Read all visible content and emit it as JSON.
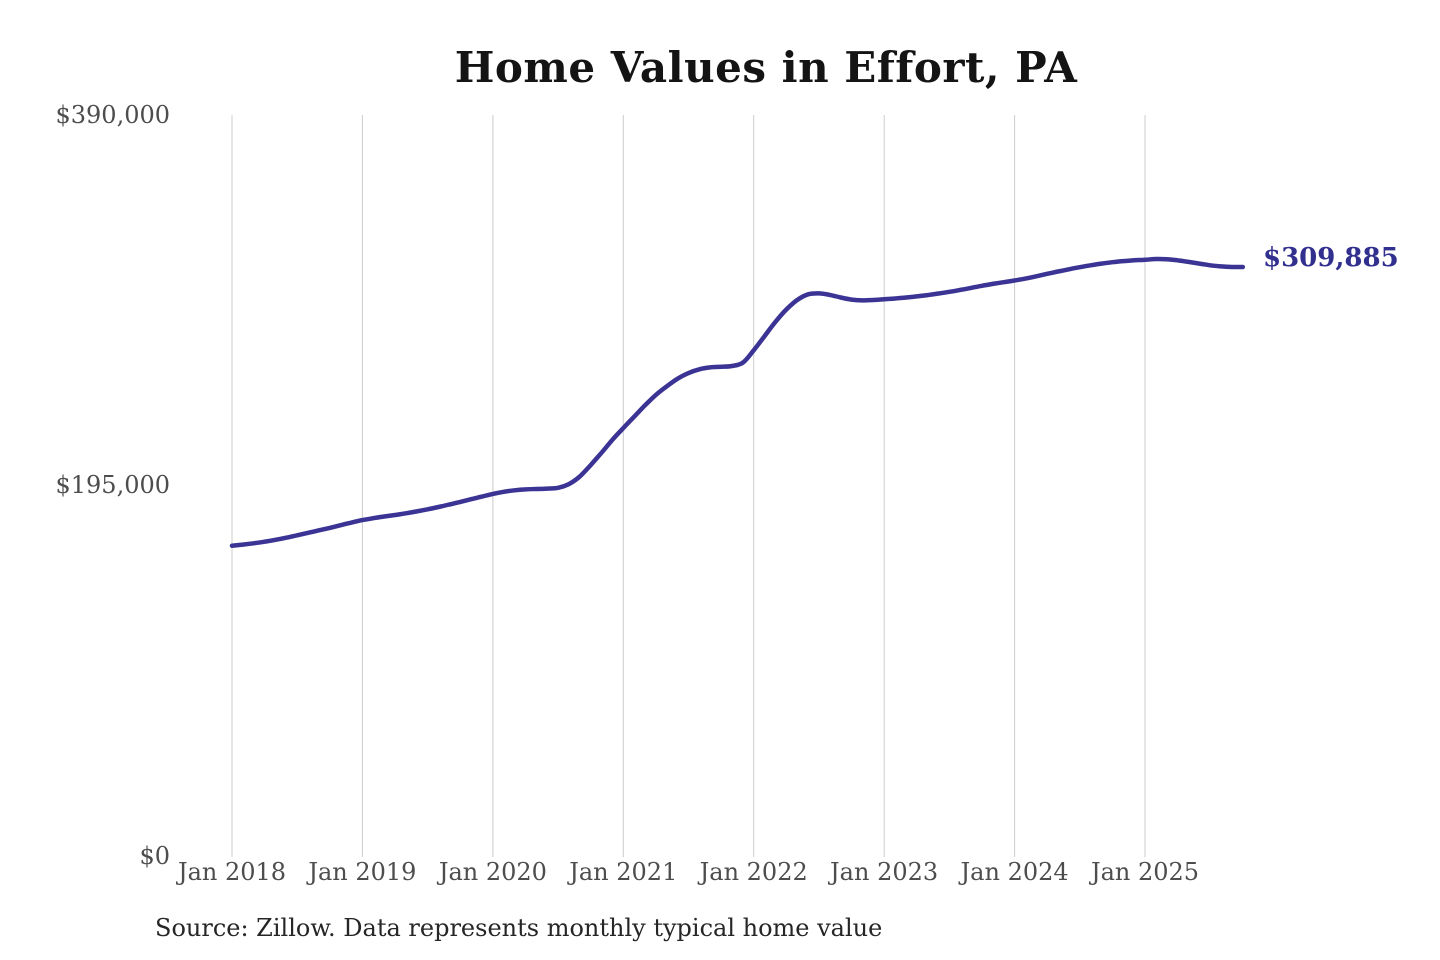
{
  "title": "Home Values in Effort, PA",
  "chart_data": {
    "type": "line",
    "title": "Home Values in Effort, PA",
    "x_unit": "month",
    "x_start": "2018-01",
    "x_end": "2025-10",
    "frequency": "monthly",
    "x_tick_labels": [
      "Jan 2018",
      "Jan 2019",
      "Jan 2020",
      "Jan 2021",
      "Jan 2022",
      "Jan 2023",
      "Jan 2024",
      "Jan 2025"
    ],
    "y_tick_labels": [
      "$0",
      "$195,000",
      "$390,000"
    ],
    "y_tick_values": [
      0,
      195000,
      390000
    ],
    "ylim": [
      0,
      390000
    ],
    "grid": "vertical-only",
    "legend": "none",
    "line_color": "#3b3494",
    "gridline_color": "#cccccc",
    "end_label": {
      "text": "$309,885",
      "value": 309885,
      "color": "#32308f"
    },
    "series": [
      {
        "name": "Typical home value",
        "values": [
          163000,
          163600,
          164300,
          165100,
          166100,
          167200,
          168500,
          169800,
          171100,
          172400,
          173800,
          175200,
          176500,
          177500,
          178400,
          179200,
          180100,
          181100,
          182200,
          183400,
          184700,
          186100,
          187500,
          188900,
          190300,
          191400,
          192200,
          192700,
          192900,
          193100,
          193500,
          195500,
          199500,
          205500,
          212000,
          218800,
          225000,
          231000,
          237000,
          242500,
          247000,
          251000,
          254000,
          256000,
          257000,
          257300,
          257700,
          259500,
          266000,
          273500,
          281000,
          287500,
          292500,
          295500,
          296000,
          295200,
          293800,
          292700,
          292300,
          292500,
          292900,
          293300,
          293800,
          294400,
          295100,
          295900,
          296800,
          297800,
          298900,
          300000,
          301000,
          301900,
          302800,
          303800,
          305000,
          306300,
          307500,
          308700,
          309800,
          310800,
          311700,
          312400,
          313000,
          313400,
          313700,
          314100,
          314000,
          313400,
          312600,
          311700,
          310800,
          310200,
          309900,
          309885
        ]
      }
    ]
  },
  "footer": {
    "source_note": "Source: Zillow. Data represents monthly typical home value"
  }
}
